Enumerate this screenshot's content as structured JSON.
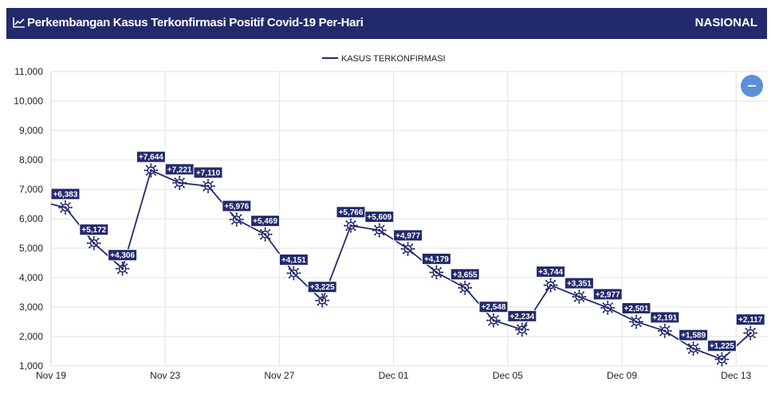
{
  "header": {
    "title": "Perkembangan Kasus Terkonfirmasi Positif Covid-19 Per-Hari",
    "scope": "NASIONAL",
    "icon": "line-chart-icon",
    "bg_color": "#232a6b"
  },
  "collapse_button": {
    "icon": "minus-icon",
    "color": "#5b8fd9"
  },
  "chart_data": {
    "type": "line",
    "title": "",
    "xlabel": "",
    "ylabel": "",
    "legend_position": "top-center",
    "grid": true,
    "line_color": "#232a6b",
    "marker_icon": "virus-icon",
    "ylim": [
      1000,
      11000
    ],
    "yticks": [
      "1,000",
      "2,000",
      "3,000",
      "4,000",
      "5,000",
      "6,000",
      "7,000",
      "8,000",
      "9,000",
      "10,000",
      "11,000"
    ],
    "xticks": [
      "Nov 19",
      "Nov 23",
      "Nov 27",
      "Dec 01",
      "Dec 05",
      "Dec 09",
      "Dec 13"
    ],
    "series": [
      {
        "name": "KASUS TERKONFIRMASI",
        "x": [
          "Nov 19",
          "Nov 20",
          "Nov 21",
          "Nov 22",
          "Nov 23",
          "Nov 24",
          "Nov 25",
          "Nov 26",
          "Nov 27",
          "Nov 28",
          "Nov 29",
          "Nov 30",
          "Dec 01",
          "Dec 02",
          "Dec 03",
          "Dec 04",
          "Dec 05",
          "Dec 06",
          "Dec 07",
          "Dec 08",
          "Dec 09",
          "Dec 10",
          "Dec 11",
          "Dec 12",
          "Dec 13",
          "Dec 14"
        ],
        "values": [
          6500,
          6383,
          5172,
          4306,
          7644,
          7221,
          7110,
          5976,
          5469,
          4151,
          3225,
          5766,
          5609,
          4977,
          4179,
          3655,
          2548,
          2234,
          3744,
          3351,
          2977,
          2501,
          2191,
          1589,
          1225,
          2117
        ],
        "labels": [
          "",
          "+6,383",
          "+5,172",
          "+4,306",
          "+7,644",
          "+7,221",
          "+7,110",
          "+5,976",
          "+5,469",
          "+4,151",
          "+3,225",
          "+5,766",
          "+5,609",
          "+4,977",
          "+4,179",
          "+3,655",
          "+2,548",
          "+2,234",
          "+3,744",
          "+3,351",
          "+2,977",
          "+2,501",
          "+2,191",
          "+1,589",
          "+1,225",
          "+2,117"
        ]
      }
    ]
  }
}
